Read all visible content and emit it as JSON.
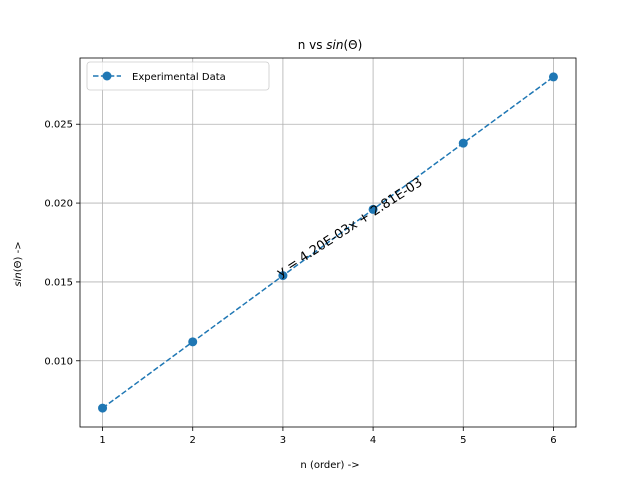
{
  "chart_data": {
    "type": "line",
    "title_prefix": "n vs ",
    "title_italic": "sin",
    "title_suffix": "(Θ)",
    "xlabel": "n (order) ->",
    "ylabel_italic": "sin",
    "ylabel_suffix": "(Θ) ->",
    "xlim": [
      0.75,
      6.25
    ],
    "ylim": [
      0.0058,
      0.0292
    ],
    "xticks": [
      1,
      2,
      3,
      4,
      5,
      6
    ],
    "xtick_labels": [
      "1",
      "2",
      "3",
      "4",
      "5",
      "6"
    ],
    "yticks": [
      0.01,
      0.015,
      0.02,
      0.025
    ],
    "ytick_labels": [
      "0.010",
      "0.015",
      "0.020",
      "0.025"
    ],
    "grid": true,
    "legend_position": "top-left",
    "series": [
      {
        "name": "Experimental Data",
        "line_style": "dashed",
        "marker": "circle",
        "color": "#1f77b4",
        "x": [
          1,
          2,
          3,
          4,
          5,
          6
        ],
        "y": [
          0.007,
          0.0112,
          0.0154,
          0.0196,
          0.0238,
          0.028
        ]
      }
    ],
    "annotation": {
      "text": "y = 4.20E-03x + 2.81E-03",
      "x": 2.97,
      "y": 0.0153,
      "rotation_deg": -33
    }
  }
}
